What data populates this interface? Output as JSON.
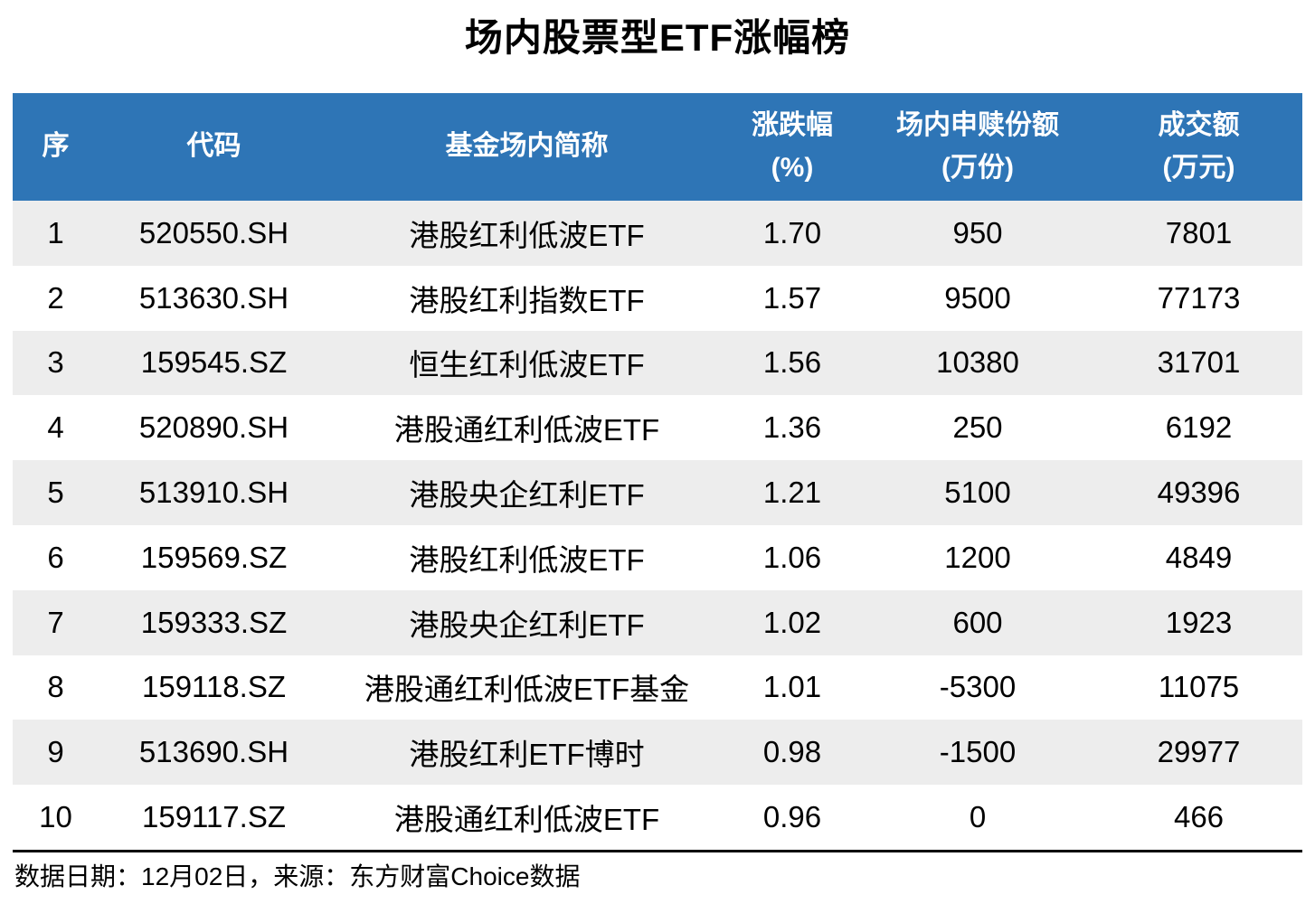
{
  "title": "场内股票型ETF涨幅榜",
  "table": {
    "columns": [
      {
        "label": "序",
        "sub": ""
      },
      {
        "label": "代码",
        "sub": ""
      },
      {
        "label": "基金场内简称",
        "sub": ""
      },
      {
        "label": "涨跌幅",
        "sub": "(%)"
      },
      {
        "label": "场内申赎份额",
        "sub": "(万份)"
      },
      {
        "label": "成交额",
        "sub": "(万元)"
      }
    ],
    "rows": [
      {
        "rank": "1",
        "code": "520550.SH",
        "name": "港股红利低波ETF",
        "change": "1.70",
        "shares": "950",
        "turnover": "7801"
      },
      {
        "rank": "2",
        "code": "513630.SH",
        "name": "港股红利指数ETF",
        "change": "1.57",
        "shares": "9500",
        "turnover": "77173"
      },
      {
        "rank": "3",
        "code": "159545.SZ",
        "name": "恒生红利低波ETF",
        "change": "1.56",
        "shares": "10380",
        "turnover": "31701"
      },
      {
        "rank": "4",
        "code": "520890.SH",
        "name": "港股通红利低波ETF",
        "change": "1.36",
        "shares": "250",
        "turnover": "6192"
      },
      {
        "rank": "5",
        "code": "513910.SH",
        "name": "港股央企红利ETF",
        "change": "1.21",
        "shares": "5100",
        "turnover": "49396"
      },
      {
        "rank": "6",
        "code": "159569.SZ",
        "name": "港股红利低波ETF",
        "change": "1.06",
        "shares": "1200",
        "turnover": "4849"
      },
      {
        "rank": "7",
        "code": "159333.SZ",
        "name": "港股央企红利ETF",
        "change": "1.02",
        "shares": "600",
        "turnover": "1923"
      },
      {
        "rank": "8",
        "code": "159118.SZ",
        "name": "港股通红利低波ETF基金",
        "change": "1.01",
        "shares": "-5300",
        "turnover": "11075"
      },
      {
        "rank": "9",
        "code": "513690.SH",
        "name": "港股红利ETF博时",
        "change": "0.98",
        "shares": "-1500",
        "turnover": "29977"
      },
      {
        "rank": "10",
        "code": "159117.SZ",
        "name": "港股通红利低波ETF",
        "change": "0.96",
        "shares": "0",
        "turnover": "466"
      }
    ]
  },
  "footer": {
    "text": "数据日期：12月02日，来源：东方财富Choice数据"
  },
  "colors": {
    "header_bg": "#2E75B6",
    "header_text": "#FFFFFF",
    "row_alt_bg": "#EDEDED",
    "row_bg": "#FFFFFF",
    "text": "#000000",
    "divider": "#000000"
  },
  "chart_data": {
    "type": "table",
    "title": "场内股票型ETF涨幅榜",
    "columns": [
      "序",
      "代码",
      "基金场内简称",
      "涨跌幅(%)",
      "场内申赎份额(万份)",
      "成交额(万元)"
    ],
    "rows": [
      [
        1,
        "520550.SH",
        "港股红利低波ETF",
        1.7,
        950,
        7801
      ],
      [
        2,
        "513630.SH",
        "港股红利指数ETF",
        1.57,
        9500,
        77173
      ],
      [
        3,
        "159545.SZ",
        "恒生红利低波ETF",
        1.56,
        10380,
        31701
      ],
      [
        4,
        "520890.SH",
        "港股通红利低波ETF",
        1.36,
        250,
        6192
      ],
      [
        5,
        "513910.SH",
        "港股央企红利ETF",
        1.21,
        5100,
        49396
      ],
      [
        6,
        "159569.SZ",
        "港股红利低波ETF",
        1.06,
        1200,
        4849
      ],
      [
        7,
        "159333.SZ",
        "港股央企红利ETF",
        1.02,
        600,
        1923
      ],
      [
        8,
        "159118.SZ",
        "港股通红利低波ETF基金",
        1.01,
        -5300,
        11075
      ],
      [
        9,
        "513690.SH",
        "港股红利ETF博时",
        0.98,
        -1500,
        29977
      ],
      [
        10,
        "159117.SZ",
        "港股通红利低波ETF",
        0.96,
        0,
        466
      ]
    ],
    "source_note": "数据日期：12月02日，来源：东方财富Choice数据"
  }
}
